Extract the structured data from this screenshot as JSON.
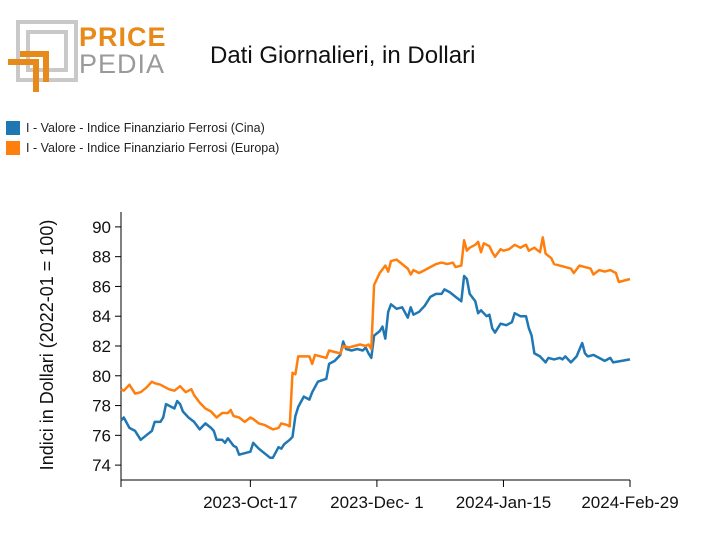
{
  "logo": {
    "word1": "PRICE",
    "word2": "PEDIA"
  },
  "chart_data": {
    "type": "line",
    "title": "Dati Giornalieri, in Dollari",
    "ylabel": "Indici in Dollari (2022-01 = 100)",
    "xlabel": "",
    "ylim": [
      73,
      91
    ],
    "yticks": [
      74,
      76,
      78,
      80,
      82,
      84,
      86,
      88,
      90
    ],
    "xlim": [
      "2023-09-01",
      "2024-02-29"
    ],
    "xticks": [
      {
        "date": "2023-09-01",
        "label": ""
      },
      {
        "date": "2023-10-17",
        "label": "2023-Oct-17"
      },
      {
        "date": "2023-12-01",
        "label": "2023-Dec- 1"
      },
      {
        "date": "2024-01-15",
        "label": "2024-Jan-15"
      },
      {
        "date": "2024-02-29",
        "label": "2024-Feb-29"
      }
    ],
    "legend_position": "top-left",
    "grid": false,
    "series": [
      {
        "name": "I - Valore - Indice Finanziario Ferrosi (Cina)",
        "color": "#1f77b4",
        "points": [
          [
            "2023-09-01",
            77.0
          ],
          [
            "2023-09-02",
            77.2
          ],
          [
            "2023-09-04",
            76.5
          ],
          [
            "2023-09-06",
            76.3
          ],
          [
            "2023-09-08",
            75.7
          ],
          [
            "2023-09-10",
            76.0
          ],
          [
            "2023-09-12",
            76.3
          ],
          [
            "2023-09-13",
            76.9
          ],
          [
            "2023-09-15",
            76.9
          ],
          [
            "2023-09-16",
            77.2
          ],
          [
            "2023-09-17",
            78.1
          ],
          [
            "2023-09-19",
            77.9
          ],
          [
            "2023-09-20",
            77.8
          ],
          [
            "2023-09-21",
            78.3
          ],
          [
            "2023-09-22",
            78.1
          ],
          [
            "2023-09-23",
            77.6
          ],
          [
            "2023-09-25",
            77.2
          ],
          [
            "2023-09-27",
            76.9
          ],
          [
            "2023-09-29",
            76.4
          ],
          [
            "2023-10-01",
            76.8
          ],
          [
            "2023-10-03",
            76.5
          ],
          [
            "2023-10-04",
            76.3
          ],
          [
            "2023-10-05",
            75.7
          ],
          [
            "2023-10-07",
            75.7
          ],
          [
            "2023-10-08",
            75.5
          ],
          [
            "2023-10-09",
            75.8
          ],
          [
            "2023-10-11",
            75.3
          ],
          [
            "2023-10-12",
            75.2
          ],
          [
            "2023-10-13",
            74.7
          ],
          [
            "2023-10-15",
            74.8
          ],
          [
            "2023-10-17",
            74.9
          ],
          [
            "2023-10-18",
            75.5
          ],
          [
            "2023-10-20",
            75.1
          ],
          [
            "2023-10-22",
            74.8
          ],
          [
            "2023-10-24",
            74.5
          ],
          [
            "2023-10-25",
            74.5
          ],
          [
            "2023-10-27",
            75.2
          ],
          [
            "2023-10-28",
            75.1
          ],
          [
            "2023-10-29",
            75.4
          ],
          [
            "2023-10-31",
            75.7
          ],
          [
            "2023-11-01",
            75.9
          ],
          [
            "2023-11-02",
            77.3
          ],
          [
            "2023-11-03",
            77.9
          ],
          [
            "2023-11-05",
            78.6
          ],
          [
            "2023-11-07",
            78.4
          ],
          [
            "2023-11-08",
            78.9
          ],
          [
            "2023-11-10",
            79.6
          ],
          [
            "2023-11-13",
            79.8
          ],
          [
            "2023-11-14",
            80.8
          ],
          [
            "2023-11-16",
            81.0
          ],
          [
            "2023-11-18",
            81.4
          ],
          [
            "2023-11-19",
            82.3
          ],
          [
            "2023-11-20",
            81.8
          ],
          [
            "2023-11-22",
            81.7
          ],
          [
            "2023-11-24",
            81.8
          ],
          [
            "2023-11-26",
            81.7
          ],
          [
            "2023-11-27",
            81.9
          ],
          [
            "2023-11-28",
            81.5
          ],
          [
            "2023-11-29",
            81.2
          ],
          [
            "2023-11-30",
            82.7
          ],
          [
            "2023-12-02",
            83.0
          ],
          [
            "2023-12-03",
            83.3
          ],
          [
            "2023-12-04",
            82.5
          ],
          [
            "2023-12-05",
            84.3
          ],
          [
            "2023-12-06",
            84.8
          ],
          [
            "2023-12-08",
            84.5
          ],
          [
            "2023-12-10",
            84.6
          ],
          [
            "2023-12-12",
            83.9
          ],
          [
            "2023-12-13",
            84.6
          ],
          [
            "2023-12-14",
            84.1
          ],
          [
            "2023-12-16",
            84.3
          ],
          [
            "2023-12-18",
            84.7
          ],
          [
            "2023-12-20",
            85.3
          ],
          [
            "2023-12-22",
            85.5
          ],
          [
            "2023-12-24",
            85.5
          ],
          [
            "2023-12-25",
            85.8
          ],
          [
            "2023-12-27",
            85.6
          ],
          [
            "2023-12-29",
            85.3
          ],
          [
            "2023-12-31",
            85.0
          ],
          [
            "2024-01-01",
            86.7
          ],
          [
            "2024-01-02",
            86.5
          ],
          [
            "2024-01-03",
            85.5
          ],
          [
            "2024-01-05",
            85.0
          ],
          [
            "2024-01-06",
            84.2
          ],
          [
            "2024-01-07",
            84.4
          ],
          [
            "2024-01-09",
            84.0
          ],
          [
            "2024-01-10",
            84.1
          ],
          [
            "2024-01-11",
            83.2
          ],
          [
            "2024-01-12",
            82.9
          ],
          [
            "2024-01-14",
            83.5
          ],
          [
            "2024-01-16",
            83.4
          ],
          [
            "2024-01-18",
            83.6
          ],
          [
            "2024-01-19",
            84.2
          ],
          [
            "2024-01-21",
            84.0
          ],
          [
            "2024-01-23",
            84.0
          ],
          [
            "2024-01-24",
            83.2
          ],
          [
            "2024-01-25",
            82.7
          ],
          [
            "2024-01-26",
            81.5
          ],
          [
            "2024-01-28",
            81.3
          ],
          [
            "2024-01-30",
            80.9
          ],
          [
            "2024-01-31",
            81.2
          ],
          [
            "2024-02-02",
            81.1
          ],
          [
            "2024-02-04",
            81.2
          ],
          [
            "2024-02-05",
            81.1
          ],
          [
            "2024-02-06",
            81.3
          ],
          [
            "2024-02-08",
            80.9
          ],
          [
            "2024-02-10",
            81.3
          ],
          [
            "2024-02-12",
            82.2
          ],
          [
            "2024-02-13",
            81.5
          ],
          [
            "2024-02-14",
            81.3
          ],
          [
            "2024-02-16",
            81.4
          ],
          [
            "2024-02-18",
            81.2
          ],
          [
            "2024-02-20",
            81.0
          ],
          [
            "2024-02-22",
            81.2
          ],
          [
            "2024-02-23",
            80.9
          ],
          [
            "2024-02-29",
            81.1
          ]
        ]
      },
      {
        "name": "I - Valore - Indice Finanziario Ferrosi (Europa)",
        "color": "#ff7f0e",
        "points": [
          [
            "2023-09-01",
            79.1
          ],
          [
            "2023-09-02",
            79.0
          ],
          [
            "2023-09-04",
            79.4
          ],
          [
            "2023-09-06",
            78.8
          ],
          [
            "2023-09-08",
            78.9
          ],
          [
            "2023-09-10",
            79.2
          ],
          [
            "2023-09-12",
            79.6
          ],
          [
            "2023-09-13",
            79.5
          ],
          [
            "2023-09-15",
            79.4
          ],
          [
            "2023-09-16",
            79.3
          ],
          [
            "2023-09-18",
            79.1
          ],
          [
            "2023-09-20",
            79.0
          ],
          [
            "2023-09-22",
            79.3
          ],
          [
            "2023-09-24",
            78.9
          ],
          [
            "2023-09-26",
            79.1
          ],
          [
            "2023-09-27",
            78.7
          ],
          [
            "2023-09-29",
            78.2
          ],
          [
            "2023-10-01",
            77.8
          ],
          [
            "2023-10-03",
            77.6
          ],
          [
            "2023-10-05",
            77.2
          ],
          [
            "2023-10-07",
            77.5
          ],
          [
            "2023-10-09",
            77.5
          ],
          [
            "2023-10-10",
            77.7
          ],
          [
            "2023-10-11",
            77.3
          ],
          [
            "2023-10-13",
            77.2
          ],
          [
            "2023-10-15",
            76.9
          ],
          [
            "2023-10-17",
            77.2
          ],
          [
            "2023-10-18",
            77.1
          ],
          [
            "2023-10-20",
            76.8
          ],
          [
            "2023-10-22",
            76.7
          ],
          [
            "2023-10-24",
            76.5
          ],
          [
            "2023-10-25",
            76.4
          ],
          [
            "2023-10-27",
            76.5
          ],
          [
            "2023-10-28",
            76.8
          ],
          [
            "2023-10-30",
            76.7
          ],
          [
            "2023-10-31",
            76.6
          ],
          [
            "2023-11-01",
            80.2
          ],
          [
            "2023-11-02",
            80.1
          ],
          [
            "2023-11-03",
            81.3
          ],
          [
            "2023-11-05",
            81.3
          ],
          [
            "2023-11-07",
            81.3
          ],
          [
            "2023-11-08",
            80.8
          ],
          [
            "2023-11-09",
            81.4
          ],
          [
            "2023-11-11",
            81.3
          ],
          [
            "2023-11-13",
            81.2
          ],
          [
            "2023-11-14",
            81.7
          ],
          [
            "2023-11-16",
            81.6
          ],
          [
            "2023-11-18",
            81.5
          ],
          [
            "2023-11-19",
            82.0
          ],
          [
            "2023-11-21",
            81.9
          ],
          [
            "2023-11-23",
            82.0
          ],
          [
            "2023-11-25",
            82.1
          ],
          [
            "2023-11-27",
            82.0
          ],
          [
            "2023-11-28",
            82.1
          ],
          [
            "2023-11-29",
            81.8
          ],
          [
            "2023-11-30",
            86.1
          ],
          [
            "2023-12-02",
            86.9
          ],
          [
            "2023-12-04",
            87.4
          ],
          [
            "2023-12-05",
            87.0
          ],
          [
            "2023-12-06",
            87.7
          ],
          [
            "2023-12-08",
            87.8
          ],
          [
            "2023-12-10",
            87.5
          ],
          [
            "2023-12-12",
            87.2
          ],
          [
            "2023-12-13",
            86.8
          ],
          [
            "2023-12-14",
            87.1
          ],
          [
            "2023-12-16",
            86.9
          ],
          [
            "2023-12-18",
            87.1
          ],
          [
            "2023-12-20",
            87.3
          ],
          [
            "2023-12-22",
            87.5
          ],
          [
            "2023-12-24",
            87.6
          ],
          [
            "2023-12-26",
            87.5
          ],
          [
            "2023-12-28",
            87.6
          ],
          [
            "2023-12-29",
            87.3
          ],
          [
            "2023-12-31",
            87.4
          ],
          [
            "2024-01-01",
            89.1
          ],
          [
            "2024-01-02",
            88.4
          ],
          [
            "2024-01-03",
            88.6
          ],
          [
            "2024-01-05",
            88.8
          ],
          [
            "2024-01-06",
            89.0
          ],
          [
            "2024-01-07",
            88.3
          ],
          [
            "2024-01-08",
            88.9
          ],
          [
            "2024-01-10",
            88.7
          ],
          [
            "2024-01-11",
            88.3
          ],
          [
            "2024-01-12",
            88.0
          ],
          [
            "2024-01-14",
            88.5
          ],
          [
            "2024-01-15",
            88.4
          ],
          [
            "2024-01-17",
            88.5
          ],
          [
            "2024-01-19",
            88.8
          ],
          [
            "2024-01-21",
            88.6
          ],
          [
            "2024-01-23",
            88.8
          ],
          [
            "2024-01-24",
            88.4
          ],
          [
            "2024-01-26",
            88.6
          ],
          [
            "2024-01-28",
            88.3
          ],
          [
            "2024-01-29",
            89.3
          ],
          [
            "2024-01-30",
            88.2
          ],
          [
            "2024-02-01",
            87.9
          ],
          [
            "2024-02-02",
            87.5
          ],
          [
            "2024-02-04",
            87.4
          ],
          [
            "2024-02-06",
            87.3
          ],
          [
            "2024-02-08",
            87.2
          ],
          [
            "2024-02-09",
            86.9
          ],
          [
            "2024-02-11",
            87.4
          ],
          [
            "2024-02-13",
            87.3
          ],
          [
            "2024-02-15",
            87.2
          ],
          [
            "2024-02-16",
            86.8
          ],
          [
            "2024-02-18",
            87.1
          ],
          [
            "2024-02-20",
            87.0
          ],
          [
            "2024-02-22",
            87.1
          ],
          [
            "2024-02-24",
            86.9
          ],
          [
            "2024-02-25",
            86.3
          ],
          [
            "2024-02-29",
            86.5
          ]
        ]
      }
    ]
  }
}
